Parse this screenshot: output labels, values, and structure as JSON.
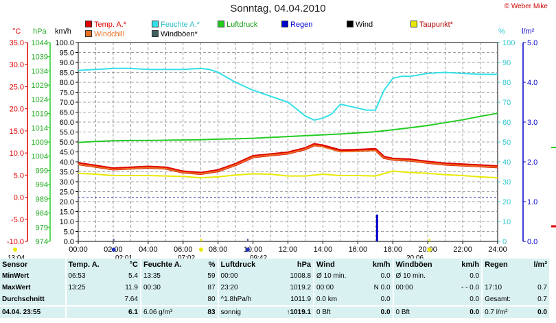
{
  "title": "Sonntag, 04.04.2010",
  "credit": "© Weber Mike",
  "legend": [
    {
      "label": "Temp. A.*",
      "color": "#e00000"
    },
    {
      "label": "Feuchte A.*",
      "color": "#33e0e8"
    },
    {
      "label": "Luftdruck",
      "color": "#22cc22"
    },
    {
      "label": "Regen",
      "color": "#0000cc"
    },
    {
      "label": "Wind",
      "color": "#000000"
    },
    {
      "label": "Taupunkt*",
      "color": "#e8e800"
    },
    {
      "label": "Windchill",
      "color": "#e87020"
    },
    {
      "label": "Windböen*",
      "color": "#406060"
    }
  ],
  "axis_units": {
    "temp": "°C",
    "pressure": "hPa",
    "wind": "km/h",
    "humidity": "%",
    "rain": "l/m²"
  },
  "events": {
    "sunrise": "07:02",
    "sunset": "20:06",
    "moon_left": "13:04",
    "moon_event_1": "02:01",
    "moon_event_2": "09:42"
  },
  "chart_data": {
    "type": "line",
    "x_ticks": [
      "00:00",
      "02:00",
      "04:00",
      "06:00",
      "08:00",
      "10:00",
      "12:00",
      "14:00",
      "16:00",
      "18:00",
      "20:00",
      "22:00",
      "24:00"
    ],
    "temp_ticks": [
      "35.0",
      "30.0",
      "25.0",
      "20.0",
      "15.0",
      "10.0",
      "5.0",
      "0.0",
      "-5.0",
      "-10.0"
    ],
    "pressure_ticks": [
      "1044",
      "1039",
      "1034",
      "1029",
      "1024",
      "1019",
      "1014",
      "1009",
      "1004",
      "999",
      "994",
      "989",
      "984",
      "979",
      "974"
    ],
    "wind_ticks": [
      "100.0",
      "95.0",
      "90.0",
      "85.0",
      "80.0",
      "75.0",
      "70.0",
      "65.0",
      "60.0",
      "55.0",
      "50.0",
      "45.0",
      "40.0",
      "35.0",
      "30.0",
      "25.0",
      "20.0",
      "15.0",
      "10.0",
      "5.0",
      "0.0"
    ],
    "humidity_ticks": [
      "100",
      "90",
      "80",
      "70",
      "60",
      "50",
      "40",
      "30",
      "20",
      "10",
      "0"
    ],
    "rain_ticks": [
      "5.0",
      "4.0",
      "3.0",
      "2.0",
      "1.0",
      "0.0"
    ],
    "ylim_temp": [
      -10,
      35
    ],
    "ylim_humidity": [
      0,
      100
    ],
    "ylim_pressure": [
      974,
      1044
    ],
    "series": [
      {
        "name": "Luftdruck",
        "axis": "pressure",
        "color": "#22cc22",
        "x": [
          0,
          1,
          2,
          3,
          4,
          5,
          6,
          7,
          8,
          9,
          10,
          11,
          12,
          13,
          14,
          15,
          16,
          17,
          18,
          19,
          20,
          21,
          22,
          23,
          24
        ],
        "values": [
          1008.8,
          1009.2,
          1009.4,
          1009.5,
          1009.5,
          1009.6,
          1009.7,
          1009.8,
          1010.0,
          1010.1,
          1010.3,
          1010.6,
          1010.9,
          1011.2,
          1011.5,
          1011.8,
          1012.2,
          1012.6,
          1013.3,
          1014.0,
          1014.8,
          1015.8,
          1016.8,
          1018.0,
          1019.1
        ]
      },
      {
        "name": "Feuchte A.*",
        "axis": "humidity",
        "color": "#33e0e8",
        "x": [
          0,
          1,
          2,
          3,
          4,
          5,
          6,
          7,
          7.5,
          8,
          9,
          10,
          11,
          12,
          13,
          13.5,
          14,
          14.5,
          15,
          15.5,
          16,
          16.5,
          17,
          17.5,
          18,
          18.5,
          19,
          20,
          21,
          22,
          23,
          24
        ],
        "values": [
          86,
          86.5,
          87,
          87,
          86.5,
          86.5,
          86.5,
          87,
          86.5,
          85,
          80,
          76,
          73,
          70,
          63,
          61,
          62,
          64,
          69,
          68,
          67,
          66,
          66,
          76,
          82,
          83,
          83,
          84.5,
          85,
          84.5,
          84,
          84
        ]
      },
      {
        "name": "Temp. A.*",
        "axis": "temp",
        "color": "#e00000",
        "x": [
          0,
          1,
          2,
          3,
          4,
          5,
          6,
          7,
          8,
          9,
          10,
          11,
          12,
          13,
          13.5,
          14,
          15,
          16,
          17,
          17.5,
          18,
          19,
          20,
          21,
          22,
          23,
          24
        ],
        "values": [
          7.6,
          7.0,
          6.4,
          6.6,
          6.8,
          6.6,
          5.7,
          5.4,
          6.0,
          7.4,
          9.2,
          9.6,
          10.0,
          11.0,
          11.9,
          11.6,
          10.5,
          10.6,
          10.8,
          9.0,
          8.6,
          8.4,
          7.9,
          7.5,
          7.3,
          7.1,
          6.9
        ]
      },
      {
        "name": "Windchill",
        "axis": "temp",
        "color": "#e87020",
        "x": [
          0,
          1,
          2,
          3,
          4,
          5,
          6,
          7,
          8,
          9,
          10,
          11,
          12,
          13,
          13.5,
          14,
          15,
          16,
          17,
          17.5,
          18,
          19,
          20,
          21,
          22,
          23,
          24
        ],
        "values": [
          7.5,
          6.9,
          6.3,
          6.5,
          6.7,
          6.5,
          5.6,
          5.3,
          5.9,
          7.3,
          9.1,
          9.5,
          9.9,
          10.9,
          11.8,
          11.4,
          10.3,
          10.4,
          10.6,
          8.9,
          8.5,
          8.3,
          7.8,
          7.4,
          7.2,
          7.0,
          6.8
        ]
      },
      {
        "name": "Taupunkt*",
        "axis": "temp",
        "color": "#e8e800",
        "x": [
          0,
          1,
          2,
          3,
          4,
          5,
          6,
          7,
          8,
          9,
          10,
          11,
          12,
          13,
          14,
          15,
          16,
          17,
          18,
          19,
          20,
          21,
          22,
          23,
          24
        ],
        "values": [
          5.4,
          5.2,
          4.9,
          4.9,
          4.9,
          4.8,
          4.7,
          4.4,
          4.6,
          5.0,
          5.3,
          5.2,
          4.8,
          4.8,
          5.2,
          4.9,
          4.9,
          4.8,
          5.9,
          5.6,
          5.4,
          5.1,
          4.9,
          4.6,
          4.4
        ]
      },
      {
        "name": "Regen",
        "axis": "wind",
        "color": "#0000cc",
        "type": "bar",
        "x": [
          17.1
        ],
        "values": [
          13.5
        ]
      }
    ]
  },
  "stats": {
    "headers": [
      "Sensor",
      "Temp. A.",
      "°C",
      "Feuchte A.",
      "%",
      "Luftdruck",
      "hPa",
      "Wind",
      "km/h",
      "Windböen",
      "km/h",
      "Regen",
      "l/m²"
    ],
    "rows": [
      [
        "MinWert",
        "06:53",
        "5.4",
        "13:35",
        "59",
        "00:00",
        "1008.8",
        "Ø 10 min.",
        "0.0",
        "Ø 10 min.",
        "0.0",
        "",
        ""
      ],
      [
        "MaxWert",
        "13:25",
        "11.9",
        "00:30",
        "87",
        "23:20",
        "1019.2",
        "00:00",
        "N 0.0",
        "00:00",
        "- - 0.0",
        "17:10",
        "0.7"
      ],
      [
        "Durchschnitt",
        "",
        "7.64",
        "",
        "80",
        "^1.8hPa/h",
        "1011.9",
        "0.0 km",
        "0.0",
        "",
        "0.0",
        "Gesamt:",
        "0.7"
      ],
      [
        "04.04.  23:55",
        "",
        "6.1",
        "6.06 g/m³",
        "83",
        "sonnig",
        "↑1019.1",
        "0 Bft",
        "0.0",
        "0 Bft",
        "0.0",
        "0.7 l/m²",
        "0.0"
      ]
    ]
  }
}
